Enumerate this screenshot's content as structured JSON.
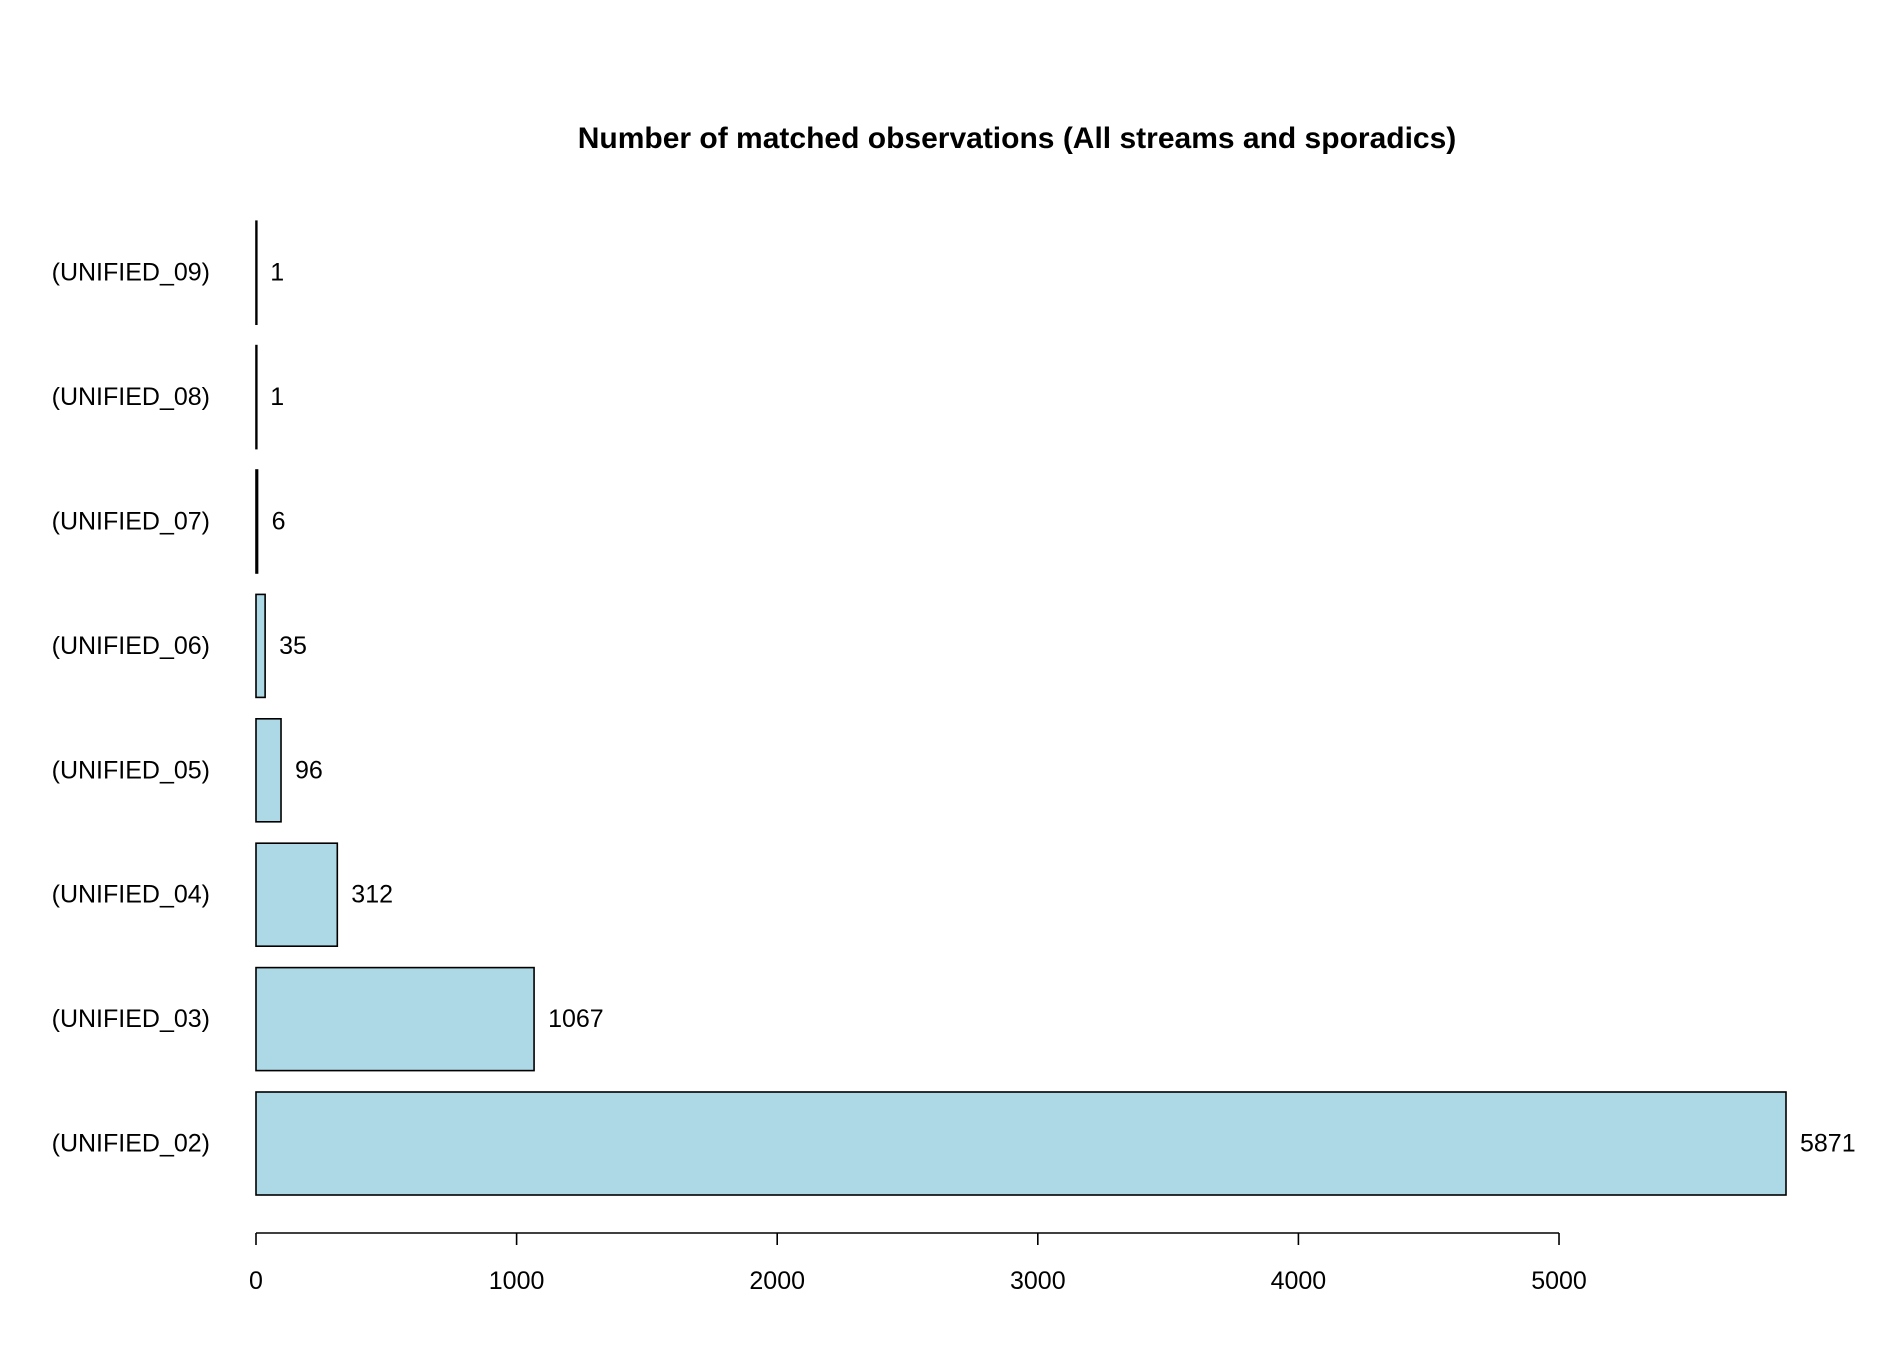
{
  "chart_data": {
    "type": "bar",
    "orientation": "horizontal",
    "title": "Number of matched observations (All streams and sporadics)",
    "xlabel": "",
    "ylabel": "",
    "categories": [
      "(UNIFIED_02)",
      "(UNIFIED_03)",
      "(UNIFIED_04)",
      "(UNIFIED_05)",
      "(UNIFIED_06)",
      "(UNIFIED_07)",
      "(UNIFIED_08)",
      "(UNIFIED_09)"
    ],
    "values": [
      5871,
      1067,
      312,
      96,
      35,
      6,
      1,
      1
    ],
    "value_labels": [
      "5871",
      "1067",
      "312",
      "96",
      "35",
      "6",
      "1",
      "1"
    ],
    "xlim": [
      0,
      5871
    ],
    "x_ticks": [
      0,
      1000,
      2000,
      3000,
      4000,
      5000
    ],
    "x_tick_labels": [
      "0",
      "1000",
      "2000",
      "3000",
      "4000",
      "5000"
    ],
    "grid": false,
    "legend": "none",
    "bar_color": "#add8e6",
    "bar_edge_color": "#000000"
  }
}
